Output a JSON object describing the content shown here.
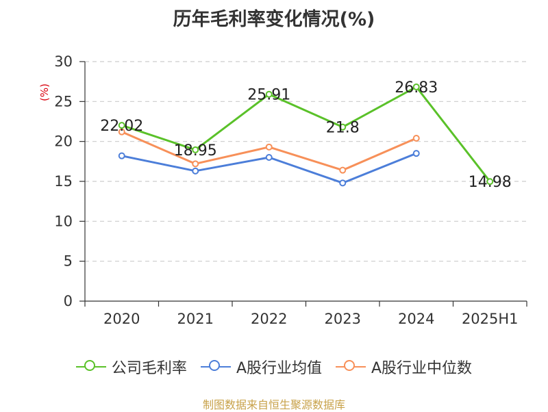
{
  "chart_data": {
    "type": "line",
    "title": "历年毛利率变化情况(%)",
    "unit_label": "(%)",
    "categories": [
      "2020",
      "2021",
      "2022",
      "2023",
      "2024",
      "2025H1"
    ],
    "ylim": [
      0,
      30
    ],
    "yticks": [
      0,
      5,
      10,
      15,
      20,
      25,
      30
    ],
    "grid": true,
    "legend_position": "bottom",
    "series": [
      {
        "name": "公司毛利率",
        "color": "#5ac129",
        "values": [
          22.02,
          18.95,
          25.91,
          21.8,
          26.83,
          14.98
        ],
        "labels": [
          "22.02",
          "18.95",
          "25.91",
          "21.8",
          "26.83",
          "14.98"
        ]
      },
      {
        "name": "A股行业均值",
        "color": "#4c7ed9",
        "values": [
          18.2,
          16.3,
          18.0,
          14.8,
          18.5,
          null
        ]
      },
      {
        "name": "A股行业中位数",
        "color": "#f79059",
        "values": [
          21.2,
          17.2,
          19.3,
          16.4,
          20.4,
          null
        ]
      }
    ]
  },
  "source": "制图数据来自恒生聚源数据库"
}
